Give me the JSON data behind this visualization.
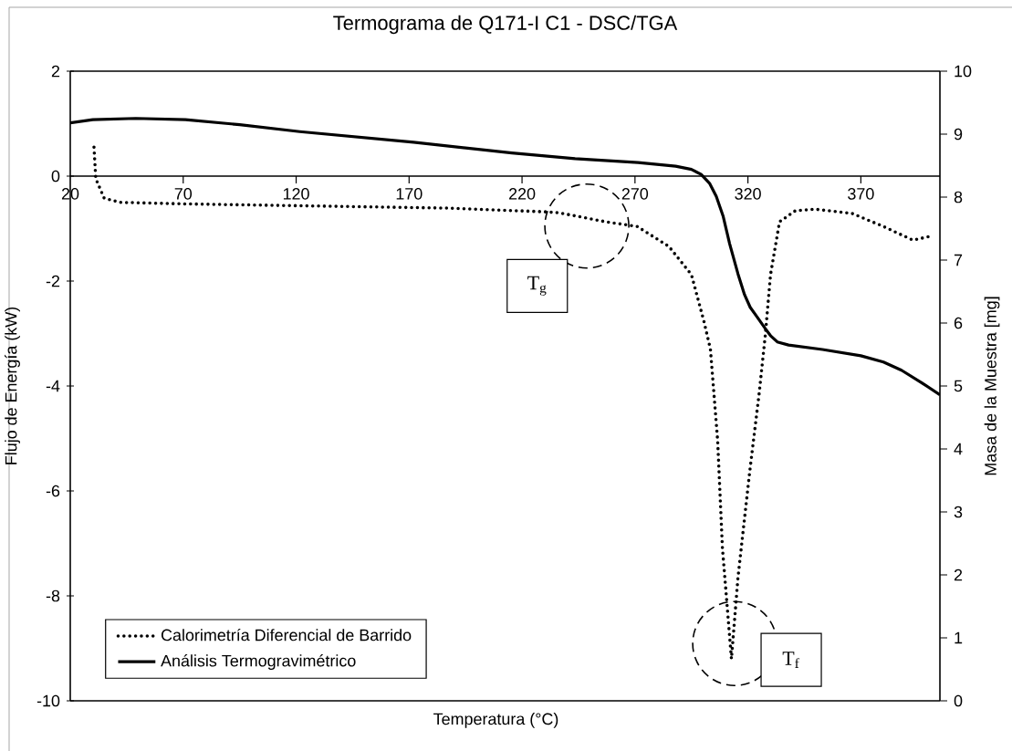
{
  "chart_data": {
    "type": "line",
    "title": "Termograma de Q171-I C1 - DSC/TGA",
    "xlabel": "Temperatura (°C)",
    "ylabel": "Flujo de Energía (kW)",
    "y2label": "Masa de la Muestra [mg]",
    "xlim": [
      20,
      405
    ],
    "xticks": [
      20,
      70,
      120,
      170,
      220,
      270,
      320,
      370
    ],
    "ylim": [
      -10,
      2
    ],
    "yticks": [
      -10,
      -8,
      -6,
      -4,
      -2,
      0,
      2
    ],
    "y2lim": [
      0,
      10
    ],
    "y2ticks": [
      0,
      1,
      2,
      3,
      4,
      5,
      6,
      7,
      8,
      9,
      10
    ],
    "legend": "bottom left",
    "marker": "none",
    "series": [
      {
        "name": "Calorimetría Diferencial de Barrido",
        "color": "#000000",
        "line_style": "dotted",
        "axis": "y",
        "x": [
          30.5,
          31.3,
          35,
          41.9,
          71,
          129,
          187,
          230,
          236.6,
          257,
          271,
          285,
          295,
          300.6,
          303.4,
          306.6,
          308.7,
          312.7,
          315.6,
          320.8,
          324.9,
          327.7,
          330,
          334,
          341,
          349.5,
          366,
          380,
          393,
          400.6
        ],
        "values": [
          0.55,
          -0.05,
          -0.42,
          -0.5,
          -0.53,
          -0.57,
          -0.61,
          -0.68,
          -0.7,
          -0.87,
          -0.96,
          -1.34,
          -1.88,
          -2.78,
          -3.3,
          -5.04,
          -7.08,
          -9.2,
          -7.65,
          -5.63,
          -4.17,
          -3.03,
          -1.88,
          -0.87,
          -0.66,
          -0.63,
          -0.71,
          -0.96,
          -1.22,
          -1.15
        ]
      },
      {
        "name": "Análisis Termogravimétrico",
        "color": "#000000",
        "line_style": "solid",
        "axis": "y2",
        "x": [
          20,
          30,
          49,
          71,
          95,
          121.6,
          172,
          215.5,
          243.5,
          271.4,
          288,
          295,
          299.3,
          303,
          306,
          309,
          311.9,
          315.6,
          318.5,
          321,
          324,
          327.7,
          330,
          333,
          338,
          353,
          370,
          380,
          388,
          397,
          405
        ],
        "values": [
          9.18,
          9.23,
          9.25,
          9.23,
          9.15,
          9.04,
          8.87,
          8.7,
          8.61,
          8.55,
          8.49,
          8.44,
          8.36,
          8.22,
          8.01,
          7.7,
          7.26,
          6.78,
          6.45,
          6.25,
          6.1,
          5.91,
          5.8,
          5.7,
          5.65,
          5.58,
          5.48,
          5.38,
          5.25,
          5.05,
          4.86
        ]
      }
    ],
    "annotations": [
      "T$_{g}$",
      "T$_{f}$"
    ]
  }
}
